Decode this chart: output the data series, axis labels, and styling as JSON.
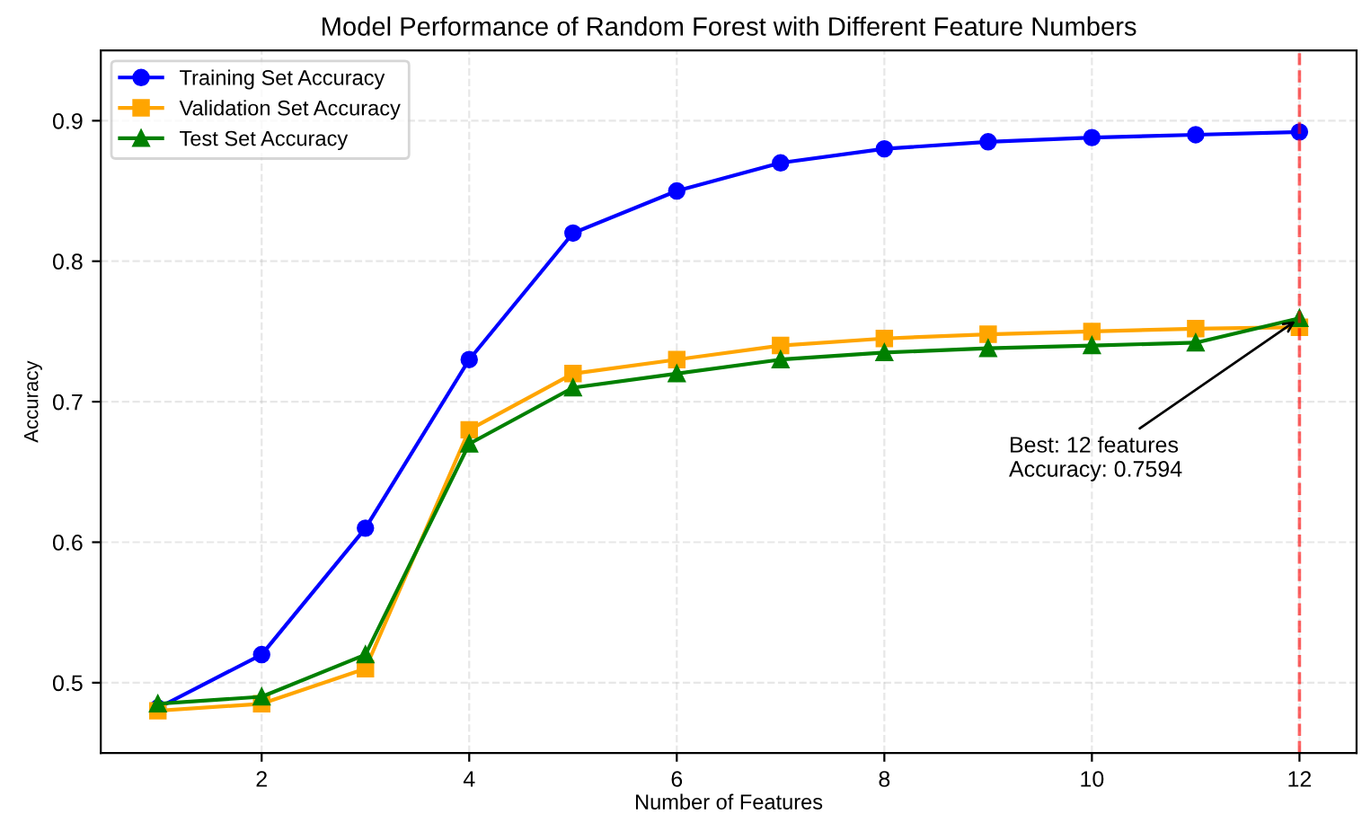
{
  "chart_data": {
    "type": "line",
    "title": "Model Performance of Random Forest with Different Feature Numbers",
    "xlabel": "Number of Features",
    "ylabel": "Accuracy",
    "x": [
      1,
      2,
      3,
      4,
      5,
      6,
      7,
      8,
      9,
      10,
      11,
      12
    ],
    "series": [
      {
        "name": "Training Set Accuracy",
        "color": "#0000ff",
        "marker": "circle",
        "values": [
          0.482,
          0.52,
          0.61,
          0.73,
          0.82,
          0.85,
          0.87,
          0.88,
          0.885,
          0.888,
          0.89,
          0.892
        ]
      },
      {
        "name": "Validation Set Accuracy",
        "color": "#ffa500",
        "marker": "square",
        "values": [
          0.48,
          0.485,
          0.51,
          0.68,
          0.72,
          0.73,
          0.74,
          0.745,
          0.748,
          0.75,
          0.752,
          0.753
        ]
      },
      {
        "name": "Test Set Accuracy",
        "color": "#008000",
        "marker": "triangle",
        "values": [
          0.485,
          0.49,
          0.52,
          0.67,
          0.71,
          0.72,
          0.73,
          0.735,
          0.738,
          0.74,
          0.742,
          0.7594
        ]
      }
    ],
    "xlim": [
      0.45,
      12.55
    ],
    "xticks": [
      2,
      4,
      6,
      8,
      10,
      12
    ],
    "ylim": [
      0.45,
      0.95
    ],
    "yticks": [
      0.5,
      0.6,
      0.7,
      0.8,
      0.9
    ],
    "ref_lines": [
      {
        "axis": "x",
        "value": 12,
        "label": null,
        "color": "#ff0000",
        "line_style": "dashed"
      }
    ],
    "annotations": [
      {
        "text": "Best: 12 features\nAccuracy: 0.7594",
        "x": 12,
        "y": 0.7594
      }
    ],
    "grid": true,
    "legend": "top left",
    "line_style": "solid"
  }
}
